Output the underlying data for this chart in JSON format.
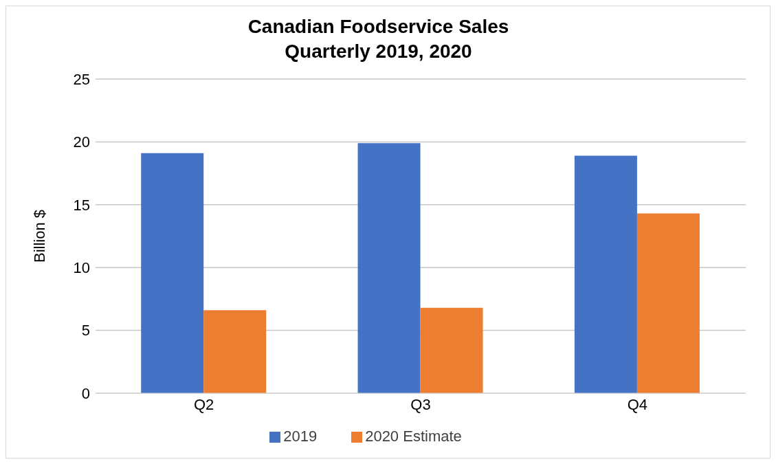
{
  "chart_data": {
    "type": "bar",
    "title": "Canadian Foodservice Sales\nQuarterly 2019, 2020",
    "ylabel": "Billion $",
    "categories": [
      "Q2",
      "Q3",
      "Q4"
    ],
    "series": [
      {
        "name": "2019",
        "color": "#4472c4",
        "values": [
          19.1,
          19.9,
          18.9
        ]
      },
      {
        "name": "2020 Estimate",
        "color": "#ed7d31",
        "values": [
          6.6,
          6.8,
          14.3
        ]
      }
    ],
    "ylim": [
      0,
      25
    ],
    "yticks": [
      0,
      5,
      10,
      15,
      20,
      25
    ],
    "grid": "y",
    "legend": "bottom"
  }
}
